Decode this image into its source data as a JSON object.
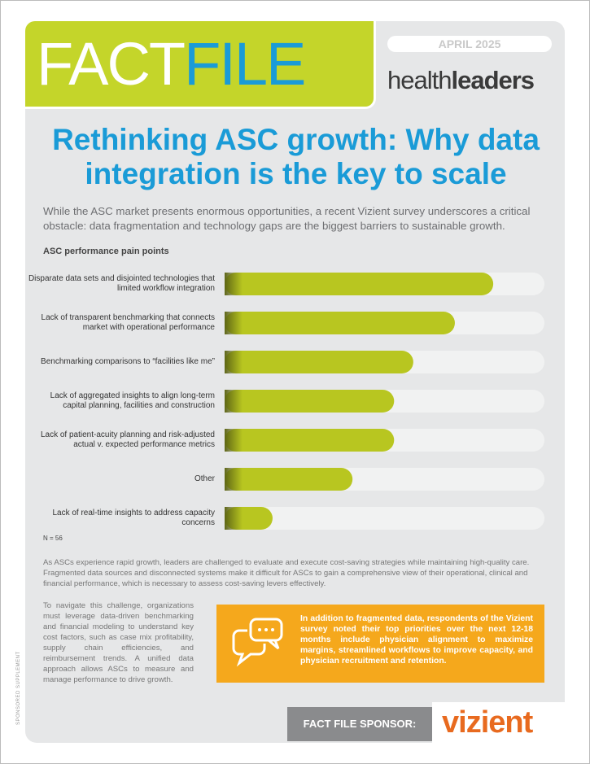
{
  "header": {
    "logo_left": "FACT",
    "logo_right": "FILE",
    "date": "APRIL 2025",
    "brand_light": "health",
    "brand_bold": "leaders"
  },
  "title": "Rethinking ASC growth: Why data integration is the key to scale",
  "intro": "While the ASC market presents enormous opportunities, a recent Vizient survey underscores a critical obstacle: data fragmentation and technology gaps are the biggest barriers to sustainable growth.",
  "chart_data": {
    "type": "bar",
    "orientation": "horizontal",
    "title": "ASC performance pain points",
    "categories": [
      "Disparate data sets and disjointed technologies that limited workflow integration",
      "Lack of transparent benchmarking that connects market with operational performance",
      "Benchmarking comparisons to “facilities like me”",
      "Lack of aggregated insights to align long-term capital planning, facilities and construction",
      "Lack of patient-acuity planning and risk-adjusted actual v. expected performance metrics",
      "Other",
      "Lack of real-time insights to address capacity concerns"
    ],
    "values": [
      84,
      72,
      59,
      53,
      53,
      40,
      15
    ],
    "color": "#b8c620",
    "xlim": [
      0,
      100
    ],
    "note": "N = 56"
  },
  "body": "As ASCs experience rapid growth, leaders are challenged to evaluate and execute cost-saving strategies while maintaining high-quality care. Fragmented data sources and disconnected systems make it difficult for ASCs to gain a comprehensive view of their operational, clinical and financial performance, which is necessary to assess cost-saving levers effectively.",
  "left_column": "To navigate this challenge, organizations must leverage data-driven benchmarking and financial modeling to understand key cost factors, such as case mix profitability, supply chain efficiencies, and reimbursement trends. A unified data approach allows ASCs to measure and manage performance to drive growth.",
  "callout": "In addition to fragmented data, respondents of the Vizient survey noted their top priorities over the next 12-18 months include physician alignment to maximize margins, streamlined workflows to improve capacity, and physician recruitment and retention.",
  "sponsor_label": "FACT FILE SPONSOR:",
  "sponsor": "vizient",
  "side_note": "SPONSORED SUPPLEMENT"
}
